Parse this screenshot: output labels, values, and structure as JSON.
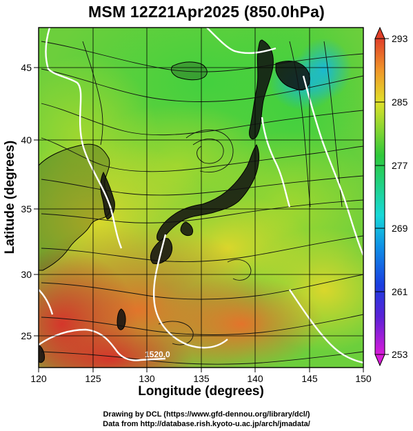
{
  "title": "MSM 12Z21Apr2025 (850.0hPa)",
  "x_axis": {
    "label": "Longitude (degrees)",
    "ticks": [
      "120",
      "125",
      "130",
      "135",
      "140",
      "145",
      "150"
    ],
    "range": [
      120,
      150
    ]
  },
  "y_axis": {
    "label": "Latitude  (degrees)",
    "ticks": [
      "25",
      "30",
      "35",
      "40",
      "45"
    ],
    "range": [
      22.4,
      47.6
    ]
  },
  "colorbar": {
    "ticks": [
      "293",
      "285",
      "277",
      "269",
      "261",
      "253"
    ],
    "range": [
      253,
      293
    ],
    "colors": [
      "#d81bd8",
      "#3a2bd6",
      "#0f7fe0",
      "#18d8d8",
      "#22d08a",
      "#2fc83a",
      "#8ed631",
      "#e0e02a",
      "#f0a02a",
      "#e8502a",
      "#d8302a"
    ]
  },
  "contours": {
    "label": "1520.0",
    "color": "#ffffff"
  },
  "credits": {
    "line1": "Drawing by DCL (https://www.gfd-dennou.org/library/dcl/)",
    "line2": "Data from http://database.rish.kyoto-u.ac.jp/arch/jmadata/"
  },
  "map_colors": {
    "land": "#111111",
    "streamline": "#111111",
    "grid": "#000000"
  }
}
